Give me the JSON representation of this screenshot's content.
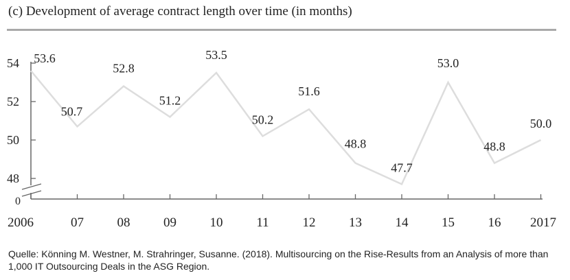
{
  "chart_data": {
    "type": "line",
    "title": "(c) Development of average contract length over time (in months)",
    "categories": [
      "2006",
      "07",
      "08",
      "09",
      "10",
      "11",
      "12",
      "13",
      "14",
      "15",
      "16",
      "2017"
    ],
    "values": [
      53.6,
      50.7,
      52.8,
      51.2,
      53.5,
      50.2,
      51.6,
      48.8,
      47.7,
      53.0,
      48.8,
      50.0
    ],
    "value_labels": [
      "53.6",
      "50.7",
      "52.8",
      "51.2",
      "53.5",
      "50.2",
      "51.6",
      "48.8",
      "47.7",
      "53.0",
      "48.8",
      "50.0"
    ],
    "yticks": [
      "54",
      "52",
      "50",
      "48",
      "0"
    ],
    "ytick_values": [
      54,
      52,
      50,
      48
    ],
    "ylim": [
      47.5,
      54.2
    ],
    "axis_break": true,
    "grid": false,
    "legend": "none",
    "xlabel": "",
    "ylabel": "",
    "line_color": "#dddddd"
  },
  "source": "Quelle: Könning M. Westner, M. Strahringer, Susanne. (2018). Multisourcing on the Rise-Results from an Analysis of more than 1,000 IT Outsourcing Deals in the ASG Region."
}
